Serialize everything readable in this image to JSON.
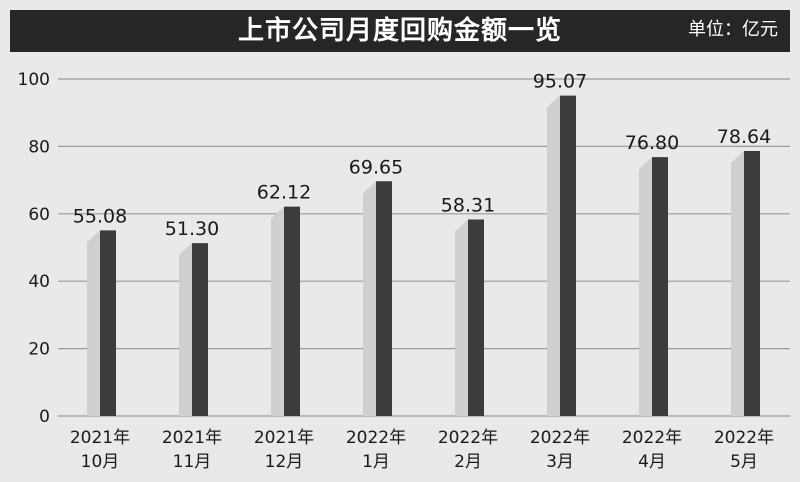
{
  "header": {
    "title": "上市公司月度回购金额一览",
    "unit": "单位：亿元"
  },
  "colors": {
    "title_bar": "#262626",
    "background": "#e9e9e9",
    "bar_front": "#3c3c3c",
    "bar_side": "#cfcfcf",
    "gridline": "#9a9a9a"
  },
  "chart_data": {
    "type": "bar",
    "title": "上市公司月度回购金额一览",
    "ylabel": "",
    "xlabel": "",
    "ylim": [
      0,
      100
    ],
    "yticks": [
      "0",
      "20",
      "40",
      "60",
      "80",
      "100"
    ],
    "categories": [
      [
        "2021年",
        "10月"
      ],
      [
        "2021年",
        "11月"
      ],
      [
        "2021年",
        "12月"
      ],
      [
        "2022年",
        "1月"
      ],
      [
        "2022年",
        "2月"
      ],
      [
        "2022年",
        "3月"
      ],
      [
        "2022年",
        "4月"
      ],
      [
        "2022年",
        "5月"
      ]
    ],
    "values": [
      55.08,
      51.3,
      62.12,
      69.65,
      58.31,
      95.07,
      76.8,
      78.64
    ],
    "labels": [
      "55.08",
      "51.30",
      "62.12",
      "69.65",
      "58.31",
      "95.07",
      "76.80",
      "78.64"
    ],
    "grid": true,
    "style": "3d-bar"
  }
}
